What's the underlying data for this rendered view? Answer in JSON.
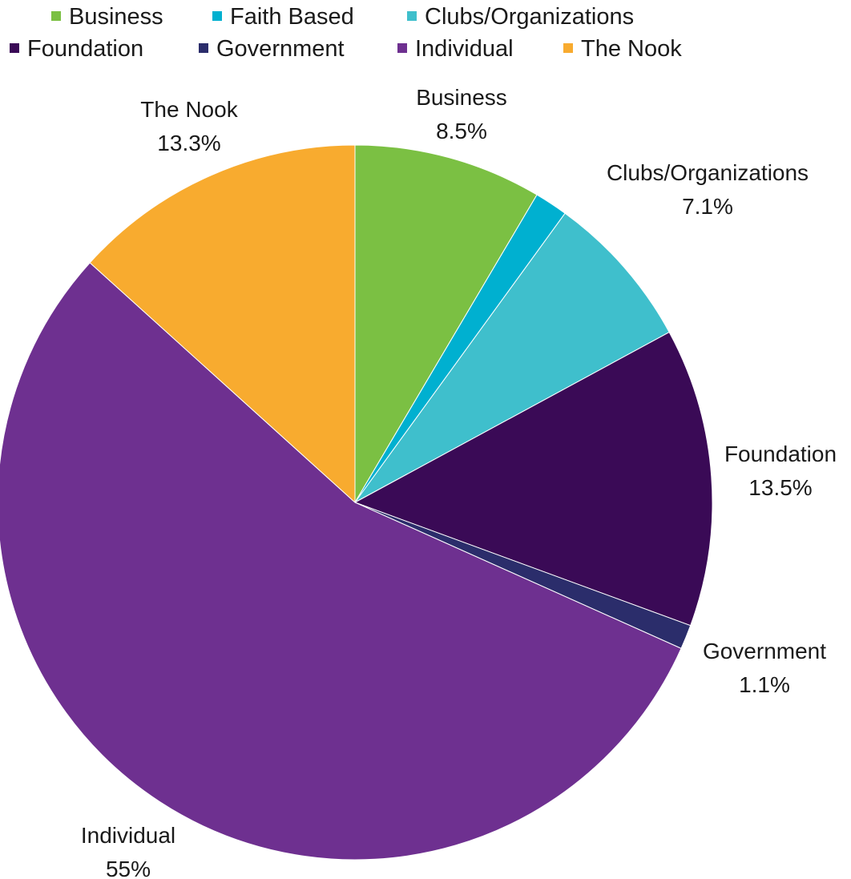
{
  "chart_data": {
    "type": "pie",
    "title": "",
    "legend_position": "top",
    "slices": [
      {
        "label": "Business",
        "value": 8.5,
        "display": "8.5%",
        "color": "#7bc043",
        "show_label": true
      },
      {
        "label": "Faith Based",
        "value": 1.5,
        "display": "",
        "color": "#00b0d0",
        "show_label": false
      },
      {
        "label": "Clubs/Organizations",
        "value": 7.1,
        "display": "7.1%",
        "color": "#3fbfcc",
        "show_label": true
      },
      {
        "label": "Foundation",
        "value": 13.5,
        "display": "13.5%",
        "color": "#3a0a56",
        "show_label": true
      },
      {
        "label": "Government",
        "value": 1.1,
        "display": "1.1%",
        "color": "#2b2d6b",
        "show_label": true
      },
      {
        "label": "Individual",
        "value": 55,
        "display": "55%",
        "color": "#6e3090",
        "show_label": true
      },
      {
        "label": "The Nook",
        "value": 13.3,
        "display": "13.3%",
        "color": "#f8ab2f",
        "show_label": true
      }
    ]
  }
}
